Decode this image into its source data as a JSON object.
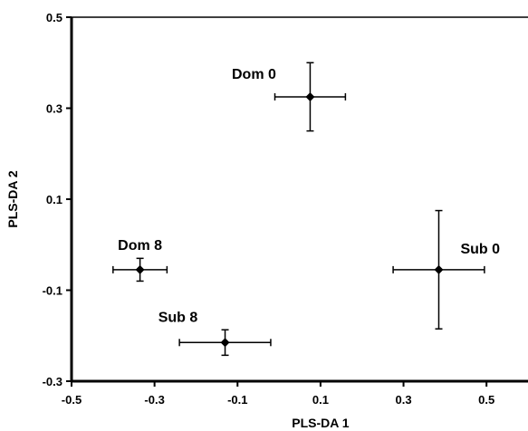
{
  "chart_data": {
    "type": "scatter",
    "xlabel": "PLS-DA 1",
    "ylabel": "PLS-DA 2",
    "xlim": [
      -0.5,
      0.6
    ],
    "ylim": [
      -0.3,
      0.5
    ],
    "xticks": [
      "-0.5",
      "-0.3",
      "-0.1",
      "0.1",
      "0.3",
      "0.5"
    ],
    "xtick_values": [
      -0.5,
      -0.3,
      -0.1,
      0.1,
      0.3,
      0.5
    ],
    "yticks": [
      "0.5",
      "0.3",
      "0.1",
      "-0.1",
      "-0.3"
    ],
    "ytick_values": [
      0.5,
      0.3,
      0.1,
      -0.1,
      -0.3
    ],
    "grid": false,
    "points": [
      {
        "label": "Dom 0",
        "x": 0.075,
        "y": 0.325,
        "x_err": 0.085,
        "y_err": 0.075
      },
      {
        "label": "Dom 8",
        "x": -0.335,
        "y": -0.055,
        "x_err": 0.065,
        "y_err": 0.025
      },
      {
        "label": "Sub 0",
        "x": 0.385,
        "y": -0.055,
        "x_err": 0.11,
        "y_err": 0.13
      },
      {
        "label": "Sub 8",
        "x": -0.13,
        "y": -0.215,
        "x_err": 0.11,
        "y_err": 0.028
      }
    ]
  }
}
